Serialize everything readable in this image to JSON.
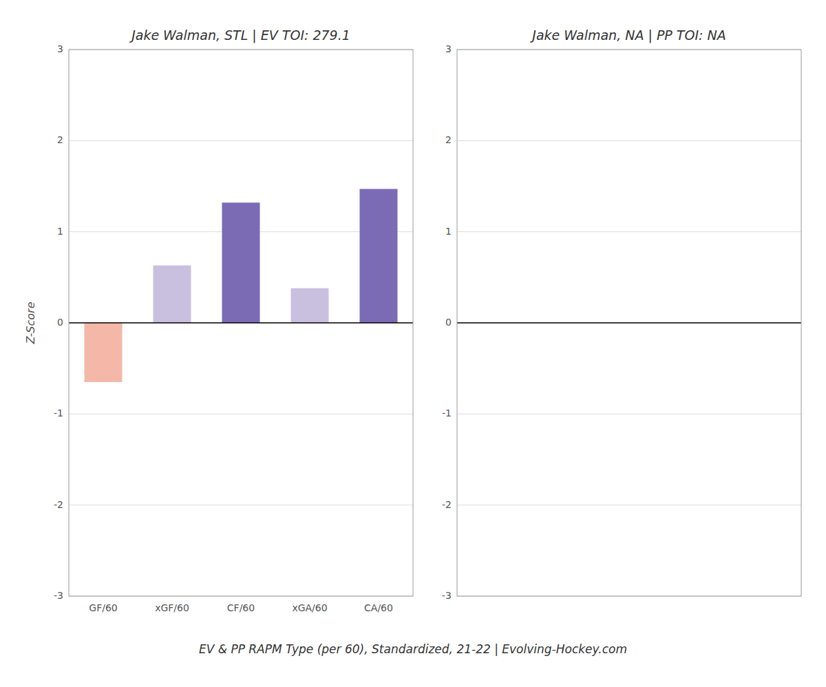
{
  "chart_data": [
    {
      "type": "bar",
      "title": "Jake Walman, STL  |  EV TOI: 279.1",
      "categories": [
        "GF/60",
        "xGF/60",
        "CF/60",
        "xGA/60",
        "CA/60"
      ],
      "values": [
        -0.65,
        0.63,
        1.32,
        0.38,
        1.47
      ],
      "colors": [
        "#F4B8A8",
        "#C9C0E0",
        "#7B6BB5",
        "#C9C0E0",
        "#7B6BB5"
      ],
      "ylabel": "Z-Score",
      "xlabel": "EV & PP RAPM Type (per 60), Standardized, 21-22   |   Evolving-Hockey.com",
      "ylim": [
        -3,
        3
      ],
      "yticks": [
        -3,
        -2,
        -1,
        0,
        1,
        2,
        3
      ],
      "grid": true
    },
    {
      "type": "bar",
      "title": "Jake Walman, NA  |  PP TOI: NA",
      "categories": [],
      "values": [],
      "ylim": [
        -3,
        3
      ],
      "yticks": [
        -3,
        -2,
        -1,
        0,
        1,
        2,
        3
      ],
      "grid": true,
      "tick_labels": "y"
    }
  ]
}
